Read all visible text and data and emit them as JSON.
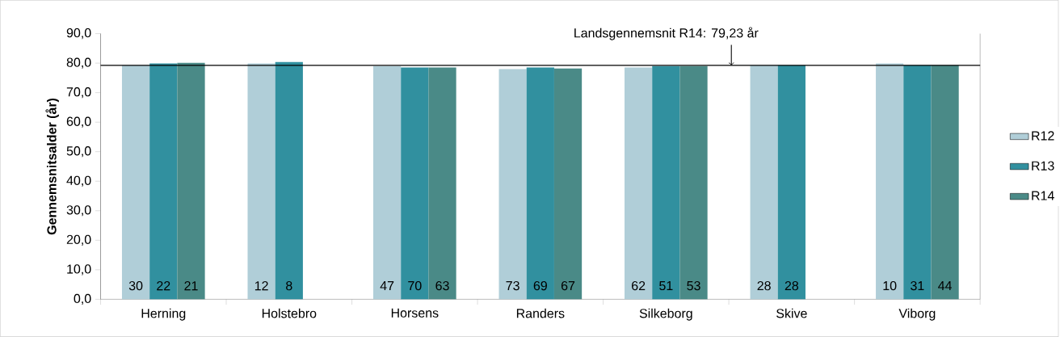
{
  "chart_data": {
    "type": "bar",
    "ylabel": "Gennemsnitsalder (år)",
    "categories": [
      "Herning",
      "Holstebro",
      "Horsens",
      "Randers",
      "Silkeborg",
      "Skive",
      "Viborg"
    ],
    "series": [
      {
        "name": "R12",
        "color": "#b0ced8",
        "values": [
          79.3,
          79.9,
          79.0,
          78.0,
          78.5,
          79.3,
          79.9
        ]
      },
      {
        "name": "R13",
        "color": "#31909f",
        "values": [
          79.9,
          80.4,
          78.5,
          78.5,
          79.0,
          79.3,
          79.3
        ]
      },
      {
        "name": "R14",
        "color": "#4a8a87",
        "values": [
          80.1,
          null,
          78.5,
          78.2,
          79.0,
          null,
          79.3
        ]
      }
    ],
    "annotations": [
      "30",
      "22",
      "21",
      "12",
      "8",
      "47",
      "70",
      "63",
      "73",
      "69",
      "67",
      "62",
      "51",
      "53",
      "28",
      "28",
      "10",
      "31",
      "44"
    ],
    "ylim": [
      0,
      90
    ],
    "yticks": [
      {
        "value": 0,
        "label": "0,0"
      },
      {
        "value": 10,
        "label": "10,0"
      },
      {
        "value": 20,
        "label": "20,0"
      },
      {
        "value": 30,
        "label": "30,0"
      },
      {
        "value": 40,
        "label": "40,0"
      },
      {
        "value": 50,
        "label": "50,0"
      },
      {
        "value": 60,
        "label": "60,0"
      },
      {
        "value": 70,
        "label": "70,0"
      },
      {
        "value": 80,
        "label": "80,0"
      },
      {
        "value": 90,
        "label": "90,0"
      }
    ],
    "ref_lines": [
      {
        "axis": "y",
        "value": 79.23,
        "label": "Landsgennemsnit R14: 79,23 år",
        "color": "#000000"
      }
    ],
    "legend": "right",
    "grid": false
  }
}
